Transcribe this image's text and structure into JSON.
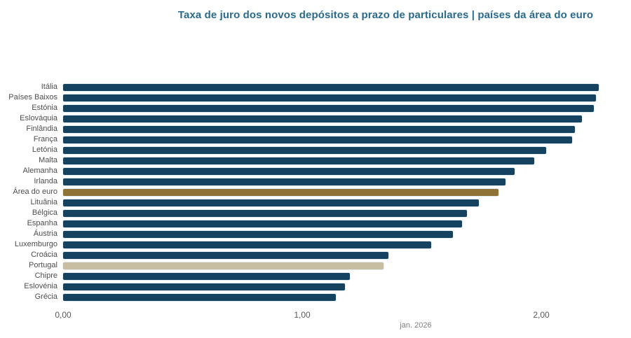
{
  "title": "Taxa de juro dos novos depósitos a prazo de particulares | países da área do euro",
  "footer": {
    "caption": "jan. 2026"
  },
  "colors": {
    "title": "#2a6a8c",
    "bar_default": "#15425f",
    "bar_euro_area": "#8f7336",
    "bar_portugal": "#c7bda0",
    "category_label": "#4d4d4d",
    "axis_tick": "#595959",
    "caption": "#7f7f7f"
  },
  "x_axis": {
    "ticks": [
      "0,00",
      "1,00",
      "2,00"
    ],
    "tick_values": [
      0,
      1,
      2
    ]
  },
  "chart_data": {
    "type": "bar",
    "orientation": "horizontal",
    "title": "Taxa de juro dos novos depósitos a prazo de particulares | países da área do euro",
    "caption": "jan. 2026",
    "categories": [
      "Itália",
      "Países Baixos",
      "Estónia",
      "Eslováquia",
      "Finlândia",
      "França",
      "Letónia",
      "Malta",
      "Alemanha",
      "Irlanda",
      "Área do euro",
      "Lituânia",
      "Bélgica",
      "Espanha",
      "Áustria",
      "Luxemburgo",
      "Croácia",
      "Portugal",
      "Chipre",
      "Eslovénia",
      "Grécia"
    ],
    "values": [
      2.24,
      2.23,
      2.22,
      2.17,
      2.14,
      2.13,
      2.02,
      1.97,
      1.89,
      1.85,
      1.82,
      1.74,
      1.69,
      1.67,
      1.63,
      1.54,
      1.36,
      1.34,
      1.2,
      1.18,
      1.14
    ],
    "highlights": {
      "Área do euro": "#8f7336",
      "Portugal": "#c7bda0"
    },
    "xlabel": "",
    "ylabel": "",
    "xlim": [
      0,
      2.37
    ],
    "x_tick_labels": [
      "0,00",
      "1,00",
      "2,00"
    ],
    "grid": false,
    "legend": false
  }
}
